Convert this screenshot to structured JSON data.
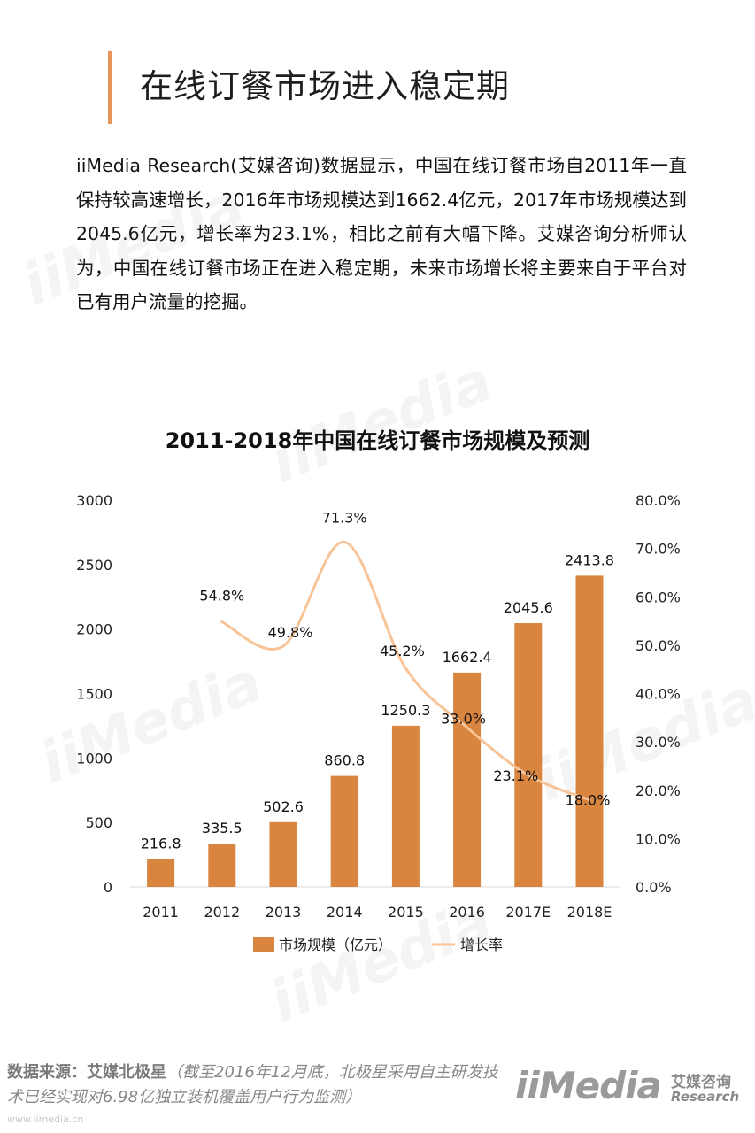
{
  "header": {
    "title": "在线订餐市场进入稳定期"
  },
  "intro": {
    "text": "iiMedia Research(艾媒咨询)数据显示，中国在线订餐市场自2011年一直保持较高速增长，2016年市场规模达到1662.4亿元，2017年市场规模达到2045.6亿元，增长率为23.1%，相比之前有大幅下降。艾媒咨询分析师认为，中国在线订餐市场正在进入稳定期，未来市场增长将主要来自于平台对已有用户流量的挖掘。"
  },
  "chart_data": {
    "type": "bar",
    "title": "2011-2018年中国在线订餐市场规模及预测",
    "categories": [
      "2011",
      "2012",
      "2013",
      "2014",
      "2015",
      "2016",
      "2017E",
      "2018E"
    ],
    "series": [
      {
        "name": "市场规模（亿元）",
        "type": "bar",
        "axis": "left",
        "values": [
          216.8,
          335.5,
          502.6,
          860.8,
          1250.3,
          1662.4,
          2045.6,
          2413.8
        ],
        "value_labels": [
          "216.8",
          "335.5",
          "502.6",
          "860.8",
          "1250.3",
          "1662.4",
          "2045.6",
          "2413.8"
        ]
      },
      {
        "name": "增长率",
        "type": "line",
        "axis": "right",
        "values": [
          null,
          54.8,
          49.8,
          71.3,
          45.2,
          33.0,
          23.1,
          18.0
        ],
        "value_labels": [
          "",
          "54.8%",
          "49.8%",
          "71.3%",
          "45.2%",
          "33.0%",
          "23.1%",
          "18.0%"
        ]
      }
    ],
    "ylim_left": [
      0,
      3000
    ],
    "yticks_left": [
      "0",
      "500",
      "1000",
      "1500",
      "2000",
      "2500",
      "3000"
    ],
    "ylim_right": [
      0,
      80
    ],
    "yticks_right": [
      "0.0%",
      "10.0%",
      "20.0%",
      "30.0%",
      "40.0%",
      "50.0%",
      "60.0%",
      "70.0%",
      "80.0%"
    ],
    "grid": false,
    "legend_position": "bottom",
    "colors": {
      "bar": "#d9843f",
      "line": "#f8c497"
    }
  },
  "footer": {
    "source_label": "数据来源：艾媒北极星",
    "source_note": "（截至2016年12月底，北极星采用自主研发技术已经实现对6.98亿独立装机覆盖用户行为监测）",
    "site_url": "www.iimedia.cn",
    "logo_main": "iiMedia",
    "logo_cn": "艾媒咨询",
    "logo_en": "Research"
  }
}
